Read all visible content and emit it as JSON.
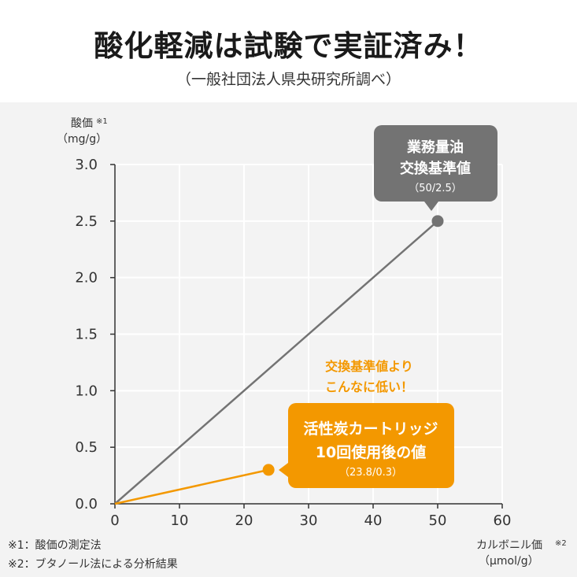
{
  "header": {
    "title": "酸化軽減は試験で実証済み！",
    "subtitle": "（一般社団法人県央研究所調べ）"
  },
  "colors": {
    "gray": "#737373",
    "orange": "#f39800",
    "panel": "#f3f3f3",
    "grid": "#ffffff"
  },
  "chart_data": {
    "type": "line",
    "ylabel": "酸価",
    "ylabel_note": "※1",
    "yunit": "（mg/g）",
    "xlabel": "カルボニル価",
    "xlabel_note": "※2",
    "xunit": "（μmol/g）",
    "xlim": [
      0,
      60
    ],
    "ylim": [
      0,
      3.0
    ],
    "x_ticks": [
      "0",
      "10",
      "20",
      "30",
      "40",
      "50",
      "60"
    ],
    "y_ticks": [
      "0.0",
      "0.5",
      "1.0",
      "1.5",
      "2.0",
      "2.5",
      "3.0"
    ],
    "x_tick_values": [
      0,
      10,
      20,
      30,
      40,
      50,
      60
    ],
    "y_tick_values": [
      0,
      0.5,
      1.0,
      1.5,
      2.0,
      2.5,
      3.0
    ],
    "grid": true,
    "series": [
      {
        "points": [
          [
            0,
            0
          ],
          [
            50,
            2.5
          ]
        ],
        "color": "#737373"
      },
      {
        "points": [
          [
            0,
            0
          ],
          [
            23.8,
            0.3
          ]
        ],
        "color": "#f39800"
      }
    ],
    "callouts": [
      {
        "line1": "業務量油",
        "line2": "交換基準値",
        "line3": "（50/2.5）",
        "color": "#737373"
      },
      {
        "line1": "活性炭カートリッジ",
        "line2": "10回使用後の値",
        "line3": "（23.8/0.3）",
        "color": "#f39800"
      }
    ],
    "annotation": {
      "line1": "交換基準値より",
      "line2": "こんなに低い！",
      "color": "#f39800"
    }
  },
  "footnotes": [
    "※1：酸価の測定法",
    "※2：ブタノール法による分析結果"
  ]
}
